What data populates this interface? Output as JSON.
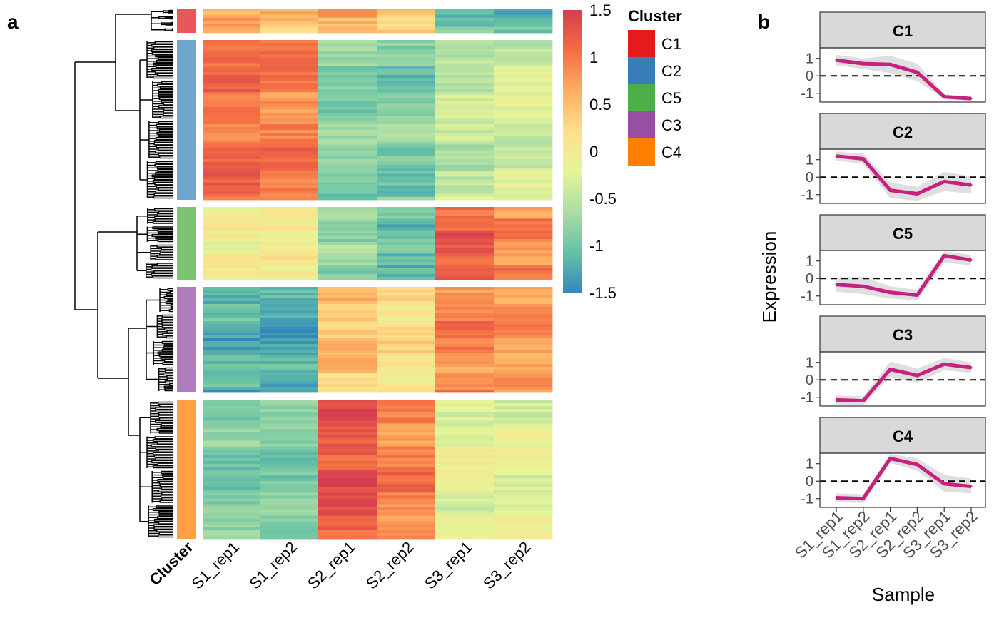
{
  "panels": {
    "a": "a",
    "b": "b"
  },
  "heatmap": {
    "samples": [
      "S1_rep1",
      "S1_rep2",
      "S2_rep1",
      "S2_rep2",
      "S3_rep1",
      "S3_rep2"
    ],
    "annotation_label": "Cluster",
    "clusters_top_to_bottom": [
      {
        "name": "C1",
        "rows": 8,
        "color": "#E9575A",
        "means": [
          0.55,
          0.45,
          0.65,
          0.35,
          -1.0,
          -1.15
        ]
      },
      {
        "name": "C2",
        "rows": 55,
        "color": "#6FA4CC",
        "means": [
          1.05,
          0.95,
          -0.85,
          -0.9,
          -0.45,
          -0.35
        ]
      },
      {
        "name": "C5",
        "rows": 25,
        "color": "#7CC471",
        "means": [
          -0.05,
          0.0,
          -0.75,
          -1.0,
          1.2,
          0.9
        ]
      },
      {
        "name": "C3",
        "rows": 37,
        "color": "#B07CBE",
        "means": [
          -1.2,
          -1.25,
          0.45,
          0.2,
          0.9,
          0.75
        ]
      },
      {
        "name": "C4",
        "rows": 48,
        "color": "#FFA043",
        "means": [
          -0.95,
          -0.95,
          1.3,
          0.95,
          -0.15,
          -0.2
        ]
      }
    ],
    "color_scale": {
      "title": "",
      "ticks": [
        "1.5",
        "1",
        "0.5",
        "0",
        "-0.5",
        "-1",
        "-1.5"
      ],
      "range": [
        -1.5,
        1.5
      ],
      "stops": [
        "#3288BD",
        "#66C2A5",
        "#ABDDA4",
        "#E6F598",
        "#FEE08B",
        "#FDAE61",
        "#F46D43",
        "#D53E4F"
      ]
    },
    "legend": {
      "title": "Cluster",
      "items": [
        {
          "label": "C1",
          "color": "#E41A1C"
        },
        {
          "label": "C2",
          "color": "#377EB8"
        },
        {
          "label": "C5",
          "color": "#4DAF4A"
        },
        {
          "label": "C3",
          "color": "#984EA3"
        },
        {
          "label": "C4",
          "color": "#FF7F00"
        }
      ]
    }
  },
  "chart_data": {
    "type": "line",
    "xlabel": "Sample",
    "ylabel": "Expression",
    "categories": [
      "S1_rep1",
      "S1_rep2",
      "S2_rep1",
      "S2_rep2",
      "S3_rep1",
      "S3_rep2"
    ],
    "ylim": [
      -1.5,
      1.6
    ],
    "yticks": [
      "1",
      "0",
      "-1"
    ],
    "line_color": "#C8207F",
    "ribbon_color": "#D9D9D9",
    "reference_line": 0,
    "facets": [
      {
        "title": "C1",
        "values": [
          0.9,
          0.7,
          0.65,
          0.2,
          -1.2,
          -1.3
        ],
        "lower": [
          0.6,
          0.4,
          0.15,
          -0.3,
          -1.35,
          -1.4
        ],
        "upper": [
          1.2,
          1.0,
          1.15,
          0.7,
          -1.05,
          -1.2
        ]
      },
      {
        "title": "C2",
        "values": [
          1.2,
          1.05,
          -0.75,
          -0.95,
          -0.25,
          -0.45
        ],
        "lower": [
          0.95,
          0.75,
          -1.2,
          -1.35,
          -0.8,
          -0.95
        ],
        "upper": [
          1.45,
          1.35,
          -0.3,
          -0.55,
          0.3,
          0.05
        ]
      },
      {
        "title": "C5",
        "values": [
          -0.35,
          -0.45,
          -0.8,
          -0.95,
          1.3,
          1.05
        ],
        "lower": [
          -0.75,
          -0.9,
          -1.15,
          -1.25,
          0.9,
          0.75
        ],
        "upper": [
          0.05,
          0.1,
          -0.45,
          -0.65,
          1.55,
          1.35
        ]
      },
      {
        "title": "C3",
        "values": [
          -1.15,
          -1.2,
          0.6,
          0.25,
          0.9,
          0.7
        ],
        "lower": [
          -1.4,
          -1.45,
          0.15,
          -0.15,
          0.55,
          0.4
        ],
        "upper": [
          -0.9,
          -0.95,
          1.05,
          0.65,
          1.25,
          1.0
        ]
      },
      {
        "title": "C4",
        "values": [
          -0.95,
          -1.0,
          1.3,
          0.95,
          -0.15,
          -0.3
        ],
        "lower": [
          -1.2,
          -1.25,
          1.05,
          0.6,
          -0.6,
          -0.7
        ],
        "upper": [
          -0.7,
          -0.75,
          1.55,
          1.3,
          0.35,
          0.15
        ]
      }
    ]
  }
}
